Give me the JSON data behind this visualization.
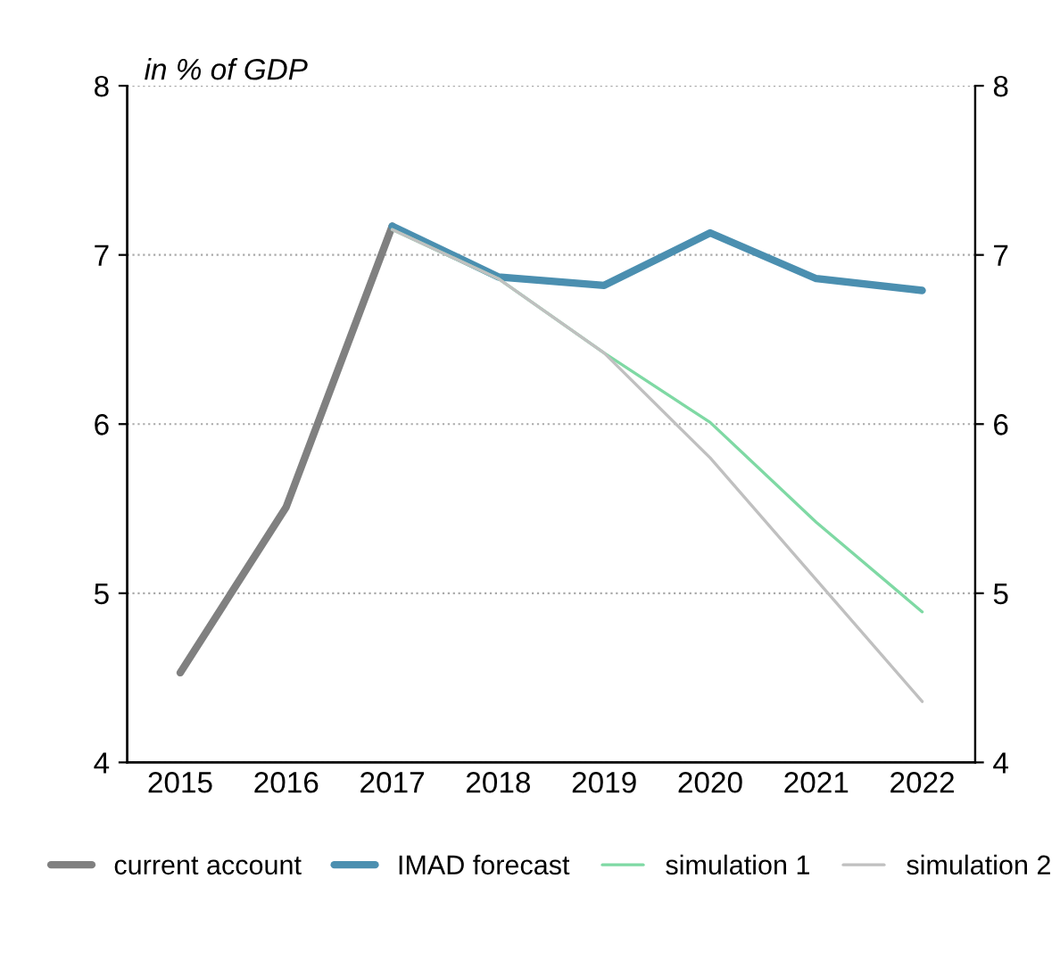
{
  "chart_data": {
    "type": "line",
    "ylabel": "in % of GDP",
    "categories": [
      "2015",
      "2016",
      "2017",
      "2018",
      "2019",
      "2020",
      "2021",
      "2022"
    ],
    "series": [
      {
        "name": "current account",
        "color": "#808080",
        "values": [
          4.53,
          5.51,
          7.17,
          null,
          null,
          null,
          null,
          null
        ]
      },
      {
        "name": "IMAD forecast",
        "color": "#4b8fb0",
        "values": [
          null,
          null,
          7.17,
          6.87,
          6.82,
          7.13,
          6.86,
          6.79
        ]
      },
      {
        "name": "simulation 1",
        "color": "#7fd9a4",
        "values": [
          null,
          null,
          7.15,
          6.86,
          6.42,
          6.01,
          5.42,
          4.89
        ]
      },
      {
        "name": "simulation 2",
        "color": "#c0c0c0",
        "values": [
          null,
          null,
          7.15,
          6.86,
          6.42,
          5.8,
          5.08,
          4.36
        ]
      }
    ],
    "ylim": [
      4,
      8
    ],
    "yticks": [
      4,
      5,
      6,
      7,
      8
    ],
    "y2lim": [
      4,
      8
    ],
    "y2ticks": [
      4,
      5,
      6,
      7,
      8
    ],
    "grid": true,
    "legend": "bottom",
    "marker": "none",
    "line_style": "solid"
  }
}
